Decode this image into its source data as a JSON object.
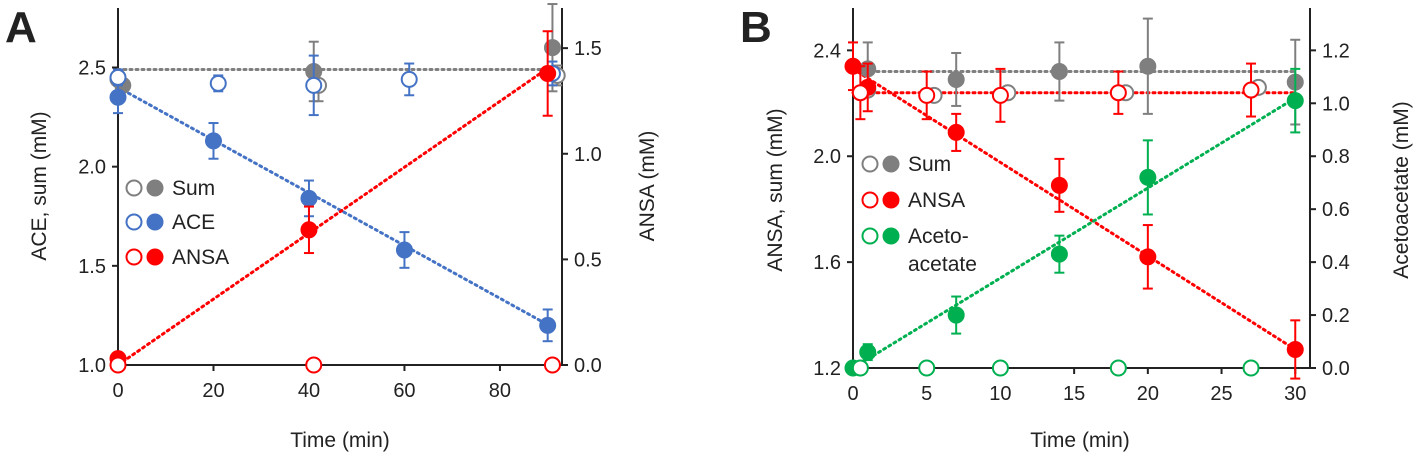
{
  "chart_data": [
    {
      "panel": "A",
      "type": "scatter",
      "xlabel": "Time (min)",
      "ylabel": "ACE, sum (mM)",
      "y2label": "ANSA (mM)",
      "xlim": [
        0,
        93
      ],
      "ylim": [
        1.0,
        2.8
      ],
      "y2lim": [
        0.0,
        1.69
      ],
      "xticks": [
        "0",
        "20",
        "40",
        "60",
        "80"
      ],
      "yticks": [
        "1.0",
        "1.5",
        "2.0",
        "2.5"
      ],
      "y2ticks": [
        "0.0",
        "0.5",
        "1.0",
        "1.5"
      ],
      "legend": [
        {
          "label": "Sum",
          "color": "#7f7f7f"
        },
        {
          "label": "ACE",
          "color": "#4472c4"
        },
        {
          "label": "ANSA",
          "color": "#ff0000"
        }
      ],
      "series": [
        {
          "name": "Sum",
          "marker": "filled",
          "axis": "left",
          "color": "#7f7f7f",
          "x": [
            1,
            41,
            91
          ],
          "y": [
            2.41,
            2.48,
            2.6
          ],
          "err": [
            0.03,
            0.15,
            0.22
          ]
        },
        {
          "name": "Sum",
          "marker": "open",
          "axis": "left",
          "color": "#7f7f7f",
          "x": [
            0,
            42,
            92
          ],
          "y": [
            2.44,
            2.41,
            2.46
          ],
          "err": [
            0.03,
            0.08,
            0.05
          ]
        },
        {
          "name": "ACE",
          "marker": "filled",
          "axis": "left",
          "color": "#4472c4",
          "x": [
            0,
            20,
            40,
            60,
            90
          ],
          "y": [
            2.35,
            2.13,
            1.84,
            1.58,
            1.2
          ],
          "err": [
            0.08,
            0.09,
            0.09,
            0.09,
            0.08
          ]
        },
        {
          "name": "ACE",
          "marker": "open",
          "axis": "left",
          "color": "#4472c4",
          "x": [
            0,
            21,
            41,
            61,
            91
          ],
          "y": [
            2.45,
            2.42,
            2.41,
            2.44,
            2.47
          ],
          "err": [
            0.04,
            0.04,
            0.15,
            0.08,
            0.06
          ]
        },
        {
          "name": "ANSA",
          "marker": "filled",
          "axis": "right",
          "color": "#ff0000",
          "x": [
            0,
            40,
            90
          ],
          "y": [
            0.03,
            0.64,
            1.38
          ],
          "err": [
            0.02,
            0.11,
            0.2
          ]
        },
        {
          "name": "ANSA",
          "marker": "open",
          "axis": "right",
          "color": "#ff0000",
          "x": [
            0,
            41,
            91
          ],
          "y": [
            0.0,
            0.0,
            0.0
          ],
          "err": [
            0,
            0,
            0
          ]
        }
      ],
      "fit_lines": [
        {
          "name": "Sum",
          "axis": "left",
          "color": "#7f7f7f",
          "x": [
            0,
            91
          ],
          "y": [
            2.49,
            2.49
          ]
        },
        {
          "name": "ACE",
          "axis": "left",
          "color": "#4472c4",
          "x": [
            0,
            91
          ],
          "y": [
            2.4,
            1.19
          ]
        },
        {
          "name": "ANSA",
          "axis": "right",
          "color": "#ff0000",
          "x": [
            0,
            91
          ],
          "y": [
            0.0,
            1.42
          ]
        }
      ]
    },
    {
      "panel": "B",
      "type": "scatter",
      "xlabel": "Time (min)",
      "ylabel": "ANSA, sum (mM)",
      "y2label": "Acetoacetate (mM)",
      "xlim": [
        0,
        31
      ],
      "ylim": [
        1.2,
        2.56
      ],
      "y2lim": [
        0.0,
        1.36
      ],
      "xticks": [
        "0",
        "5",
        "10",
        "15",
        "20",
        "25",
        "30"
      ],
      "yticks": [
        "1.2",
        "1.6",
        "2.0",
        "2.4"
      ],
      "y2ticks": [
        "0.0",
        "0.2",
        "0.4",
        "0.6",
        "0.8",
        "1.0",
        "1.2"
      ],
      "legend": [
        {
          "label": "Sum",
          "color": "#7f7f7f"
        },
        {
          "label": "ANSA",
          "color": "#ff0000"
        },
        {
          "label": "Aceto-",
          "label2": "acetate",
          "color": "#00b050"
        }
      ],
      "series": [
        {
          "name": "Sum",
          "marker": "filled",
          "axis": "left",
          "color": "#7f7f7f",
          "x": [
            1,
            7,
            14,
            20,
            30
          ],
          "y": [
            2.33,
            2.29,
            2.32,
            2.34,
            2.28
          ],
          "err": [
            0.1,
            0.1,
            0.11,
            0.18,
            0.16
          ]
        },
        {
          "name": "Sum",
          "marker": "open",
          "axis": "left",
          "color": "#7f7f7f",
          "x": [
            1,
            5.5,
            10.5,
            18.5,
            27.5
          ],
          "y": [
            2.25,
            2.23,
            2.24,
            2.24,
            2.26
          ],
          "err": [
            0,
            0,
            0,
            0,
            0
          ]
        },
        {
          "name": "ANSA",
          "marker": "filled",
          "axis": "left",
          "color": "#ff0000",
          "x": [
            0,
            1,
            7,
            14,
            20,
            30
          ],
          "y": [
            2.34,
            2.26,
            2.09,
            1.89,
            1.62,
            1.27
          ],
          "err": [
            0.09,
            0.09,
            0.07,
            0.1,
            0.12,
            0.11
          ]
        },
        {
          "name": "ANSA",
          "marker": "open",
          "axis": "left",
          "color": "#ff0000",
          "x": [
            0.5,
            5,
            10,
            18,
            27
          ],
          "y": [
            2.24,
            2.23,
            2.23,
            2.24,
            2.25
          ],
          "err": [
            0.1,
            0.09,
            0.1,
            0.08,
            0.1
          ]
        },
        {
          "name": "Acetoacetate",
          "marker": "filled",
          "axis": "right",
          "color": "#00b050",
          "x": [
            0,
            1,
            7,
            14,
            20,
            30
          ],
          "y": [
            0.0,
            0.06,
            0.2,
            0.43,
            0.72,
            1.01
          ],
          "err": [
            0,
            0.03,
            0.07,
            0.07,
            0.14,
            0.12
          ]
        },
        {
          "name": "Acetoacetate",
          "marker": "open",
          "axis": "right",
          "color": "#00b050",
          "x": [
            0.5,
            5,
            10,
            18,
            27
          ],
          "y": [
            0.0,
            0.0,
            0.0,
            0.0,
            0.0
          ],
          "err": [
            0,
            0,
            0,
            0,
            0
          ]
        }
      ],
      "fit_lines": [
        {
          "name": "Sum",
          "axis": "left",
          "color": "#7f7f7f",
          "x": [
            0,
            30
          ],
          "y": [
            2.32,
            2.32
          ]
        },
        {
          "name": "ANSA-open",
          "axis": "left",
          "color": "#ff0000",
          "x": [
            0,
            30
          ],
          "y": [
            2.24,
            2.24
          ]
        },
        {
          "name": "ANSA",
          "axis": "left",
          "color": "#ff0000",
          "x": [
            0,
            30
          ],
          "y": [
            2.33,
            1.27
          ]
        },
        {
          "name": "Acetoacetate",
          "axis": "right",
          "color": "#00b050",
          "x": [
            0,
            30
          ],
          "y": [
            0.0,
            1.02
          ]
        }
      ]
    }
  ]
}
